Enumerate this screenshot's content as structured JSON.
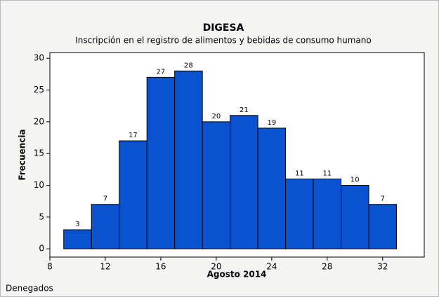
{
  "chart_data": {
    "type": "histogram",
    "title": "DIGESA",
    "subtitle": "Inscripción en el registro de alimentos y bebidas de consumo humano",
    "x_label": "Agosto 2014",
    "y_label": "Frecuencia",
    "annotation": "Denegados",
    "bins": [
      9,
      11,
      13,
      15,
      17,
      19,
      21,
      23,
      25,
      27,
      29,
      31,
      33
    ],
    "counts": [
      3,
      7,
      17,
      27,
      28,
      20,
      21,
      19,
      11,
      11,
      10,
      7
    ],
    "color": "#0a52d0",
    "xlim": [
      8,
      35
    ],
    "xticks": [
      8,
      12,
      16,
      20,
      24,
      28,
      32
    ],
    "ylim": [
      -1.3,
      30.9
    ],
    "yticks": [
      0,
      5,
      10,
      15,
      20,
      25,
      30
    ]
  }
}
